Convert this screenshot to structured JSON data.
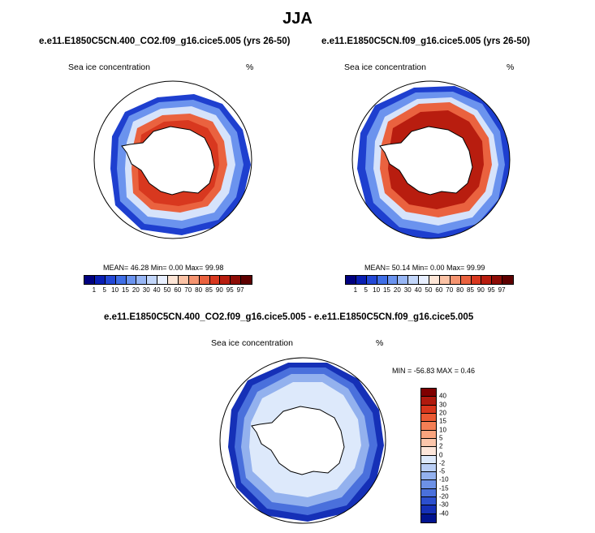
{
  "title": "JJA",
  "panels": [
    {
      "id": "left",
      "title": "e.e11.E1850C5CN.400_CO2.f09_g16.cice5.005 (yrs 26-50)",
      "variable": "Sea ice concentration",
      "unit": "%",
      "stats": "MEAN=  46.28  Min=   0.00  Max=  99.98"
    },
    {
      "id": "right",
      "title": "e.e11.E1850C5CN.f09_g16.cice5.005 (yrs 26-50)",
      "variable": "Sea ice concentration",
      "unit": "%",
      "stats": "MEAN=  50.14  Min=   0.00  Max=  99.99"
    },
    {
      "id": "diff",
      "title": "e.e11.E1850C5CN.400_CO2.f09_g16.cice5.005 - e.e11.E1850C5CN.f09_g16.cice5.005",
      "variable": "Sea ice concentration",
      "unit": "%",
      "stats": "MIN = -56.83 MAX =   0.46"
    }
  ],
  "colorbar_abs": {
    "labels": [
      "1",
      "5",
      "10",
      "15",
      "20",
      "30",
      "40",
      "50",
      "60",
      "70",
      "80",
      "85",
      "90",
      "95",
      "97"
    ],
    "colors": [
      "#00007f",
      "#0a1fb4",
      "#2348d6",
      "#3f6ee6",
      "#6a93ef",
      "#97b6f5",
      "#c2d6fa",
      "#e8efff",
      "#fde5d6",
      "#fbc2a5",
      "#f59470",
      "#ea623f",
      "#d8381f",
      "#b81d0f",
      "#8d0c06",
      "#5e0000"
    ]
  },
  "colorbar_diff": {
    "labels": [
      "40",
      "30",
      "20",
      "15",
      "10",
      "5",
      "2",
      "0",
      "-2",
      "-5",
      "-10",
      "-15",
      "-20",
      "-30",
      "-40"
    ],
    "colors": [
      "#7f0000",
      "#b01a0e",
      "#d8361c",
      "#ea5a33",
      "#f47f55",
      "#f9a47e",
      "#fcc6ab",
      "#fde6da",
      "#dde9fb",
      "#b9cef5",
      "#93b1ee",
      "#6d91e6",
      "#4a70dc",
      "#2c4fce",
      "#1530b7",
      "#00138f"
    ]
  },
  "map_legend": {
    "ocean": "#ffffff",
    "land": "#ffffff",
    "coast": "#000000"
  }
}
